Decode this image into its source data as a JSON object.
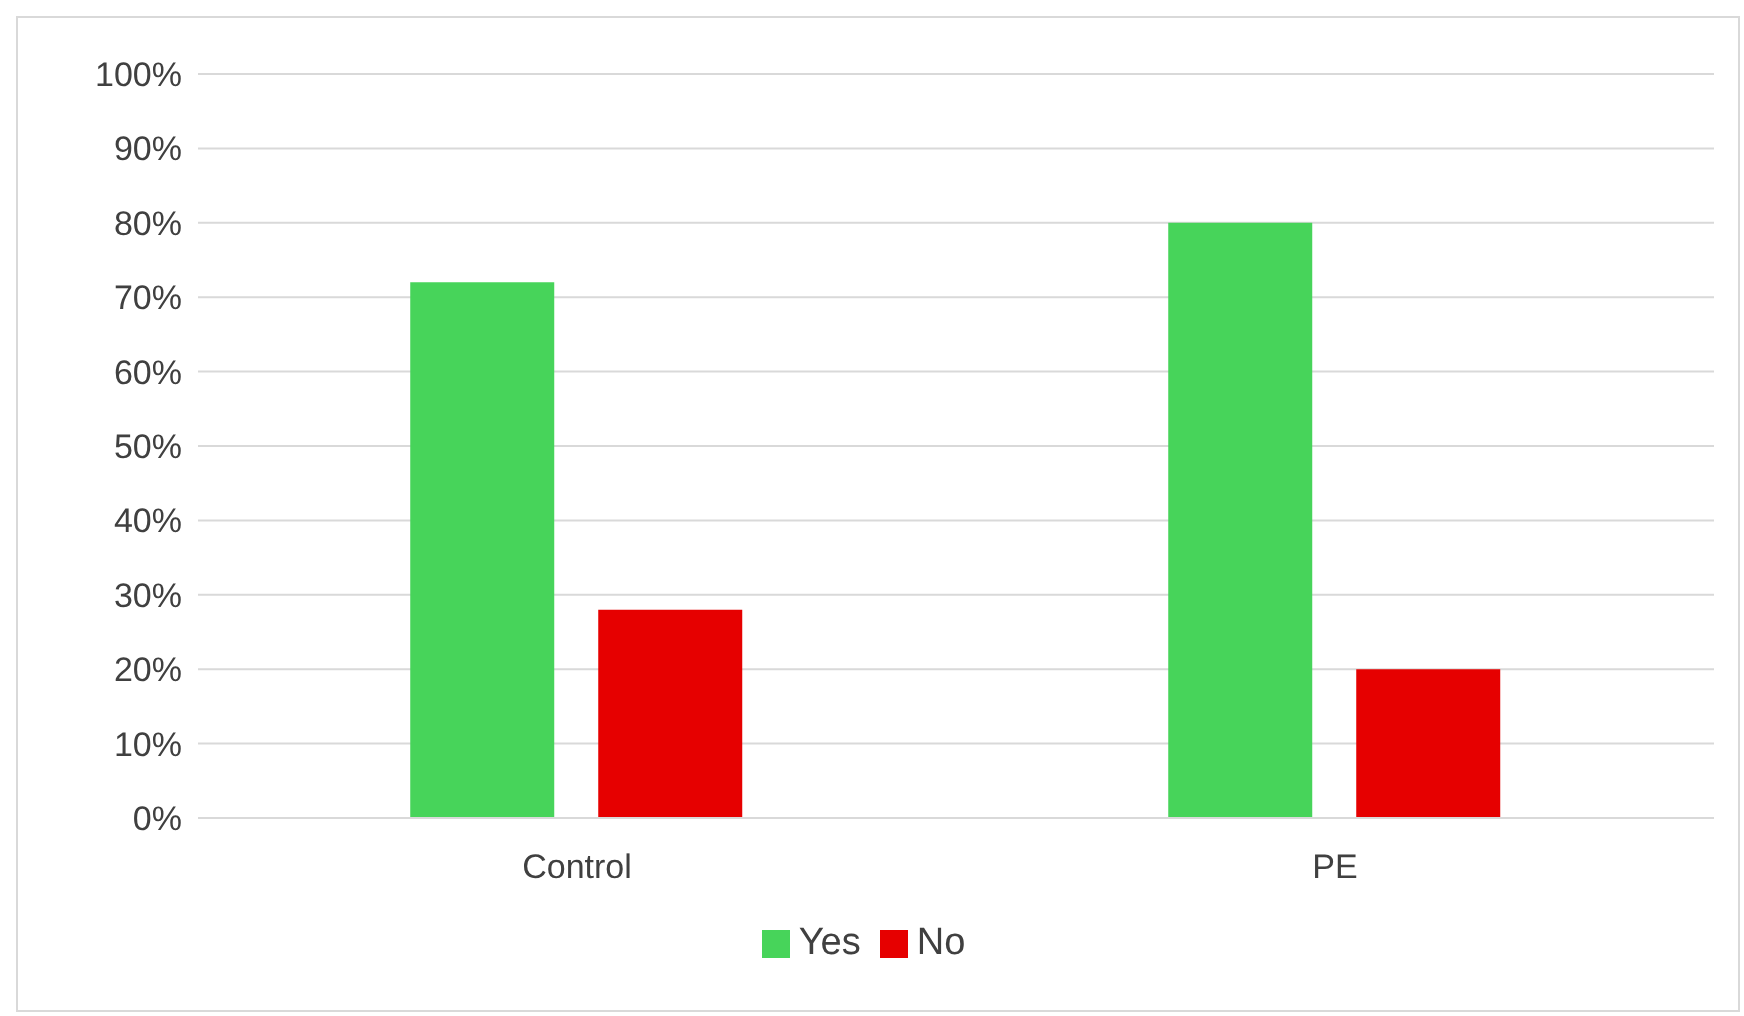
{
  "chart_data": {
    "type": "bar",
    "categories": [
      "Control",
      "PE"
    ],
    "series": [
      {
        "name": "Yes",
        "color": "#47d45a",
        "values": [
          72,
          80
        ]
      },
      {
        "name": "No",
        "color": "#e60000",
        "values": [
          28,
          20
        ]
      }
    ],
    "ylim": [
      0,
      100
    ],
    "yticks": [
      {
        "value": 0,
        "label": "0%"
      },
      {
        "value": 10,
        "label": "10%"
      },
      {
        "value": 20,
        "label": "20%"
      },
      {
        "value": 30,
        "label": "30%"
      },
      {
        "value": 40,
        "label": "40%"
      },
      {
        "value": 50,
        "label": "50%"
      },
      {
        "value": 60,
        "label": "60%"
      },
      {
        "value": 70,
        "label": "70%"
      },
      {
        "value": 80,
        "label": "80%"
      },
      {
        "value": 90,
        "label": "90%"
      },
      {
        "value": 100,
        "label": "100%"
      }
    ],
    "grid": "y",
    "legend": "bottom"
  }
}
